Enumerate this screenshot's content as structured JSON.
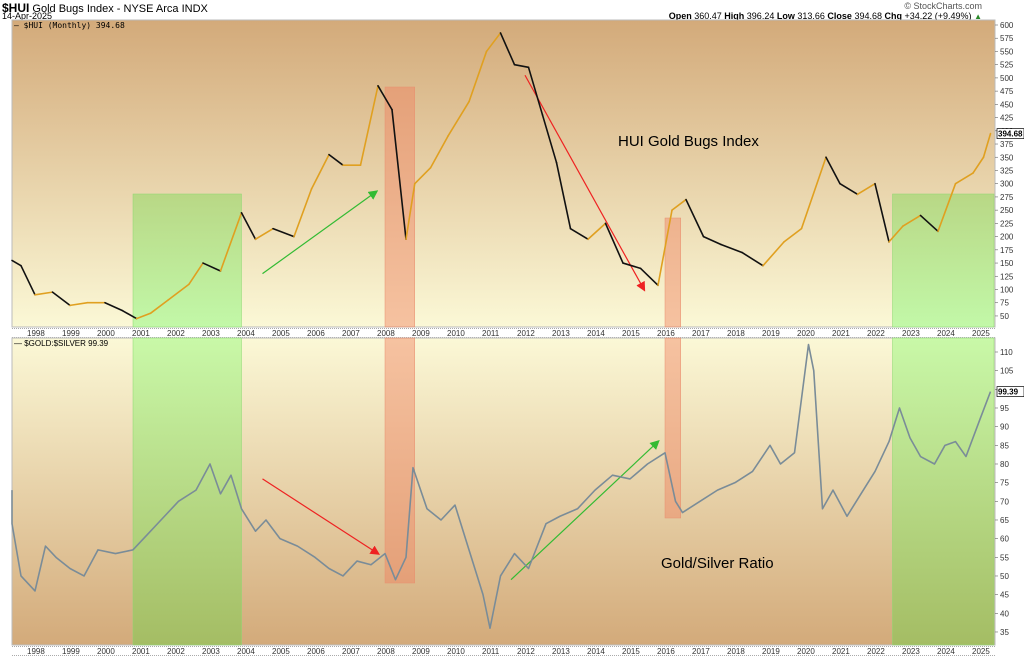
{
  "header": {
    "symbol": "$HUI",
    "description": "Gold Bugs Index - NYSE Arca  INDX",
    "date": "14-Apr-2025",
    "brand": "© StockCharts.com",
    "ohlc": {
      "open_label": "Open",
      "open": "360.47",
      "high_label": "High",
      "high": "396.24",
      "low_label": "Low",
      "low": "313.66",
      "close_label": "Close",
      "close": "394.68",
      "chg_label": "Chg",
      "chg": "+34.22 (+9.49%)",
      "chg_arrow": "up-triangle-icon"
    }
  },
  "colors": {
    "panel_top": "#d4ab7b",
    "panel_bottom": "#faf6d4",
    "green_zone": "#90ee70",
    "red_zone": "#f08060",
    "hui_up": "#e0a020",
    "hui_down": "#111111",
    "ratio_line": "#7a8c98",
    "arrow_green": "#33bb33",
    "arrow_red": "#ee2222"
  },
  "chart_data": [
    {
      "type": "line",
      "title": "$HUI (Monthly) 394.68",
      "annotation": "HUI Gold Bugs Index",
      "xlabel": "",
      "ylabel": "",
      "ylim": [
        50,
        600
      ],
      "y_ticks": [
        600,
        575,
        550,
        525,
        500,
        475,
        450,
        425,
        400,
        375,
        350,
        325,
        300,
        275,
        250,
        225,
        200,
        175,
        150,
        125,
        100,
        75,
        50
      ],
      "last_value_label": "394.68",
      "x": [
        1997.25,
        1997.6,
        1998.0,
        1998.5,
        1999.0,
        1999.5,
        2000.0,
        2000.5,
        2000.9,
        2001.3,
        2001.8,
        2002.4,
        2002.8,
        2003.3,
        2003.9,
        2004.3,
        2004.8,
        2005.4,
        2005.9,
        2006.4,
        2006.8,
        2007.3,
        2007.8,
        2008.2,
        2008.6,
        2008.85,
        2009.3,
        2009.8,
        2010.4,
        2010.9,
        2011.3,
        2011.7,
        2012.1,
        2012.5,
        2012.9,
        2013.3,
        2013.8,
        2014.3,
        2014.8,
        2015.3,
        2015.8,
        2016.2,
        2016.6,
        2017.1,
        2017.6,
        2018.2,
        2018.8,
        2019.4,
        2019.9,
        2020.6,
        2021.0,
        2021.5,
        2022.0,
        2022.4,
        2022.8,
        2023.3,
        2023.8,
        2024.3,
        2024.8,
        2025.1,
        2025.3
      ],
      "values": [
        155,
        145,
        90,
        95,
        70,
        75,
        75,
        60,
        45,
        55,
        80,
        110,
        150,
        135,
        245,
        195,
        215,
        200,
        290,
        355,
        335,
        335,
        485,
        440,
        195,
        300,
        330,
        390,
        455,
        550,
        585,
        525,
        520,
        430,
        340,
        215,
        195,
        225,
        150,
        140,
        108,
        250,
        270,
        200,
        185,
        170,
        145,
        190,
        215,
        350,
        300,
        280,
        300,
        190,
        220,
        240,
        210,
        300,
        320,
        350,
        394.68
      ],
      "shaded_zones": [
        {
          "color": "green",
          "x_start": 2000.8,
          "x_end": 2003.9
        },
        {
          "color": "red",
          "x_start": 2008.0,
          "x_end": 2008.85
        },
        {
          "color": "red",
          "x_start": 2016.0,
          "x_end": 2016.45
        },
        {
          "color": "green",
          "x_start": 2022.5,
          "x_end": 2025.4
        }
      ],
      "arrows": [
        {
          "color": "green",
          "from": [
            2004.5,
            130
          ],
          "to": [
            2007.75,
            285
          ]
        },
        {
          "color": "red",
          "from": [
            2012.0,
            505
          ],
          "to": [
            2015.4,
            100
          ]
        }
      ]
    },
    {
      "type": "line",
      "title": "$GOLD:$SILVER 99.39",
      "annotation": "Gold/Silver Ratio",
      "xlabel": "",
      "ylabel": "",
      "ylim": [
        32,
        113
      ],
      "y_ticks": [
        110,
        105,
        100,
        95,
        90,
        85,
        80,
        75,
        70,
        65,
        60,
        55,
        50,
        45,
        40,
        35
      ],
      "last_value_label": "99.39",
      "x": [
        1997.0,
        1997.3,
        1997.6,
        1998.0,
        1998.3,
        1998.6,
        1999.0,
        1999.4,
        1999.8,
        2000.3,
        2000.8,
        2001.2,
        2001.7,
        2002.1,
        2002.6,
        2003.0,
        2003.3,
        2003.6,
        2003.9,
        2004.3,
        2004.6,
        2005.0,
        2005.5,
        2006.0,
        2006.4,
        2006.8,
        2007.2,
        2007.6,
        2008.0,
        2008.3,
        2008.6,
        2008.8,
        2009.2,
        2009.6,
        2010.0,
        2010.4,
        2010.8,
        2011.0,
        2011.3,
        2011.7,
        2012.1,
        2012.6,
        2013.0,
        2013.5,
        2014.0,
        2014.5,
        2015.0,
        2015.5,
        2016.0,
        2016.3,
        2016.5,
        2017.0,
        2017.5,
        2018.0,
        2018.5,
        2019.0,
        2019.3,
        2019.7,
        2020.1,
        2020.25,
        2020.5,
        2020.8,
        2021.2,
        2021.6,
        2022.0,
        2022.4,
        2022.7,
        2023.0,
        2023.3,
        2023.7,
        2024.0,
        2024.3,
        2024.6,
        2025.0,
        2025.3
      ],
      "values": [
        73,
        64,
        50,
        46,
        58,
        55,
        52,
        50,
        57,
        56,
        57,
        61,
        66,
        70,
        73,
        80,
        72,
        77,
        68,
        62,
        65,
        60,
        58,
        55,
        52,
        50,
        54,
        53,
        56,
        49,
        55,
        79,
        68,
        65,
        69,
        57,
        45,
        36,
        50,
        56,
        52,
        64,
        66,
        68,
        73,
        77,
        76,
        80,
        83,
        70,
        67,
        70,
        73,
        75,
        78,
        85,
        80,
        83,
        112,
        105,
        68,
        73,
        66,
        72,
        78,
        86,
        95,
        87,
        82,
        80,
        85,
        86,
        82,
        92,
        99.39
      ],
      "shaded_zones": [
        {
          "color": "green",
          "x_start": 2000.8,
          "x_end": 2003.9
        },
        {
          "color": "red",
          "x_start": 2008.0,
          "x_end": 2008.85
        },
        {
          "color": "red",
          "x_start": 2016.0,
          "x_end": 2016.45
        },
        {
          "color": "green",
          "x_start": 2022.5,
          "x_end": 2025.4
        }
      ],
      "arrows": [
        {
          "color": "red",
          "from": [
            2004.5,
            76
          ],
          "to": [
            2007.8,
            56
          ]
        },
        {
          "color": "green",
          "from": [
            2011.6,
            49
          ],
          "to": [
            2015.8,
            86
          ]
        }
      ]
    }
  ],
  "x_axis": {
    "year_labels": [
      "1998",
      "1999",
      "2000",
      "2001",
      "2002",
      "2003",
      "2004",
      "2005",
      "2006",
      "2007",
      "2008",
      "2009",
      "2010",
      "2011",
      "2012",
      "2013",
      "2014",
      "2015",
      "2016",
      "2017",
      "2018",
      "2019",
      "2020",
      "2021",
      "2022",
      "2023",
      "2024",
      "2025"
    ]
  }
}
